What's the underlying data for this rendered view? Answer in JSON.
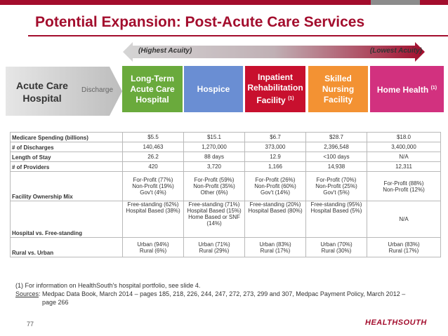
{
  "header": {
    "title": "Potential Expansion: Post-Acute Care Services"
  },
  "acuity": {
    "high": "(Highest Acuity)",
    "low": "(Lowest Acuity)"
  },
  "flow": {
    "acute": "Acute Care Hospital",
    "discharge": "Discharge"
  },
  "settings": [
    {
      "name": "Long-Term Acute Care Hospital",
      "note": ""
    },
    {
      "name": "Hospice",
      "note": ""
    },
    {
      "name": "Inpatient Rehabilitation Facility",
      "note": "(1)"
    },
    {
      "name": "Skilled Nursing Facility",
      "note": ""
    },
    {
      "name": "Home Health",
      "note": "(1)"
    }
  ],
  "table": {
    "labels": {
      "spending": "Medicare Spending (billions)",
      "discharges": "# of Discharges",
      "los": "Length of Stay",
      "providers": "# of Providers",
      "ownership": "Facility Ownership Mix",
      "hospital": "Hospital vs. Free-standing",
      "rural": "Rural vs. Urban"
    },
    "spending": [
      "$5.5",
      "$15.1",
      "$6.7",
      "$28.7",
      "$18.0"
    ],
    "discharges": [
      "140,463",
      "1,270,000",
      "373,000",
      "2,396,548",
      "3,400,000"
    ],
    "los": [
      "26.2",
      "88 days",
      "12.9",
      "<100 days",
      "N/A"
    ],
    "providers": [
      "420",
      "3,720",
      "1,166",
      "14,938",
      "12,311"
    ],
    "ownership": [
      [
        "For-Profit (77%)",
        "Non-Profit (19%)",
        "Gov't (4%)"
      ],
      [
        "For-Profit (59%)",
        "Non-Profit (35%)",
        "Other (6%)"
      ],
      [
        "For-Profit (26%)",
        "Non-Profit (60%)",
        "Gov't (14%)"
      ],
      [
        "For-Profit (70%)",
        "Non-Profit (25%)",
        "Gov't (5%)"
      ],
      [
        "For-Profit (88%)",
        "Non-Profit (12%)",
        ""
      ]
    ],
    "hospital": [
      [
        "Free-standing (62%)",
        "Hospital Based (38%)",
        "",
        ""
      ],
      [
        "Free-standing (71%)",
        "Hospital Based (15%)",
        "Home Based or SNF",
        "(14%)"
      ],
      [
        "Free-standing (20%)",
        "Hospital Based (80%)",
        "",
        ""
      ],
      [
        "Free-standing (95%)",
        "Hospital Based (5%)",
        "",
        ""
      ],
      [
        "N/A"
      ]
    ],
    "rural": [
      [
        "Urban (94%)",
        "Rural (6%)"
      ],
      [
        "Urban (71%)",
        "Rural (29%)"
      ],
      [
        "Urban (83%)",
        "Rural (17%)"
      ],
      [
        "Urban (70%)",
        "Rural (30%)"
      ],
      [
        "Urban (83%)",
        "Rural (17%)"
      ]
    ]
  },
  "footnotes": {
    "line1": "(1) For information on HealthSouth's hospital portfolio, see slide 4.",
    "sources_label": "Sources",
    "line2": ": Medpac Data Book, March 2014 – pages 185, 218, 226, 244, 247, 272, 273, 299 and 307, Medpac Payment Policy, March 2012 –",
    "line3": "page 266"
  },
  "footer": {
    "page": "77",
    "logo": "HEALTHSOUTH"
  },
  "colors": {
    "brand": "#a30d2d",
    "ltach": "#6aaa3c",
    "hospice": "#6a8ed3",
    "irf": "#c8102e",
    "snf": "#f39233",
    "home": "#d2317f"
  }
}
